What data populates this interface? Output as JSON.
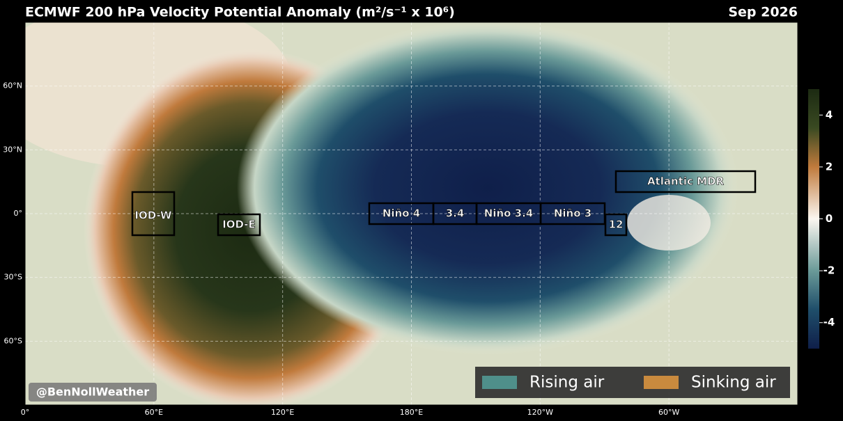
{
  "header": {
    "title": "ECMWF 200 hPa Velocity Potential Anomaly (m²/s⁻¹ x 10⁶)",
    "date": "Sep 2026"
  },
  "map": {
    "lon_lim": [
      0,
      360
    ],
    "lat_lim": [
      -90,
      90
    ],
    "lat_ticks": [
      {
        "value": 60,
        "label": "60°N"
      },
      {
        "value": 30,
        "label": "30°N"
      },
      {
        "value": 0,
        "label": "0°"
      },
      {
        "value": -30,
        "label": "30°S"
      },
      {
        "value": -60,
        "label": "60°S"
      }
    ],
    "lon_ticks": [
      {
        "value": 0,
        "label": "0°"
      },
      {
        "value": 60,
        "label": "60°E"
      },
      {
        "value": 120,
        "label": "120°E"
      },
      {
        "value": 180,
        "label": "180°E"
      },
      {
        "value": 240,
        "label": "120°W"
      },
      {
        "value": 300,
        "label": "60°W"
      }
    ],
    "regions": [
      "IOD-W",
      "IOD-E",
      "Niño 4",
      "3.4",
      "Niño 3.4",
      "Niño 3",
      "12",
      "Atlantic MDR"
    ]
  },
  "colorbar": {
    "lim": [
      -5,
      5
    ],
    "ticks": [
      4,
      2,
      0,
      -2,
      -4
    ]
  },
  "legend": [
    {
      "name": "Rising air",
      "color": "#4f8f8a"
    },
    {
      "name": "Sinking air",
      "color": "#c98a3e"
    }
  ],
  "credit": "@BenNollWeather"
}
